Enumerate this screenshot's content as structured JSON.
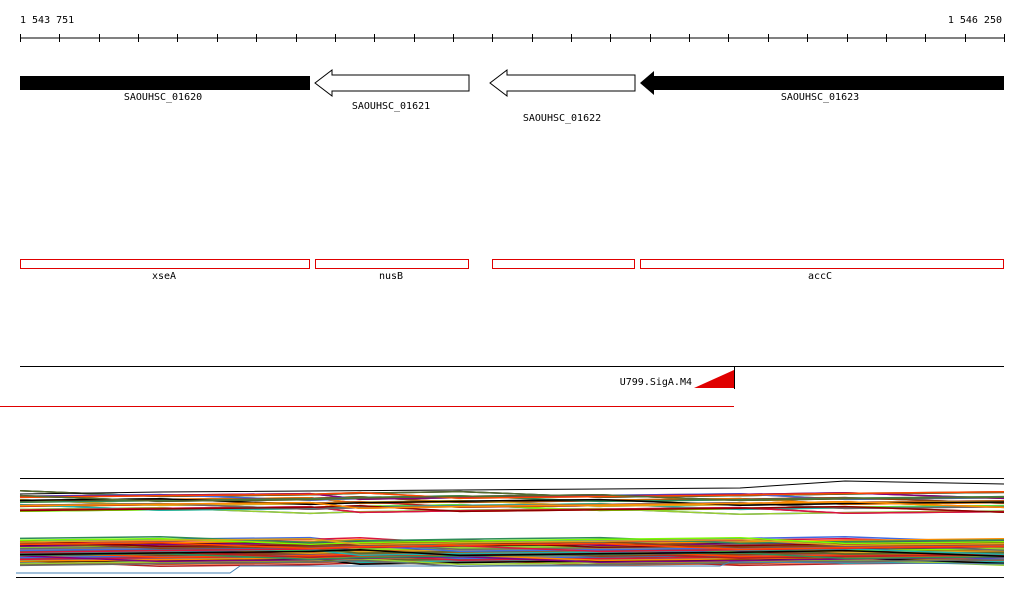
{
  "ruler": {
    "start": "1 543 751",
    "end": "1 546 250"
  },
  "genes": [
    {
      "label": "SAOUHSC_01620"
    },
    {
      "label": "SAOUHSC_01621"
    },
    {
      "label": "SAOUHSC_01622"
    },
    {
      "label": "SAOUHSC_01623"
    }
  ],
  "features": [
    {
      "label": "xseA"
    },
    {
      "label": "nusB"
    },
    {
      "label": "accC"
    }
  ],
  "motif": {
    "label": "U799.SigA.M4"
  }
}
